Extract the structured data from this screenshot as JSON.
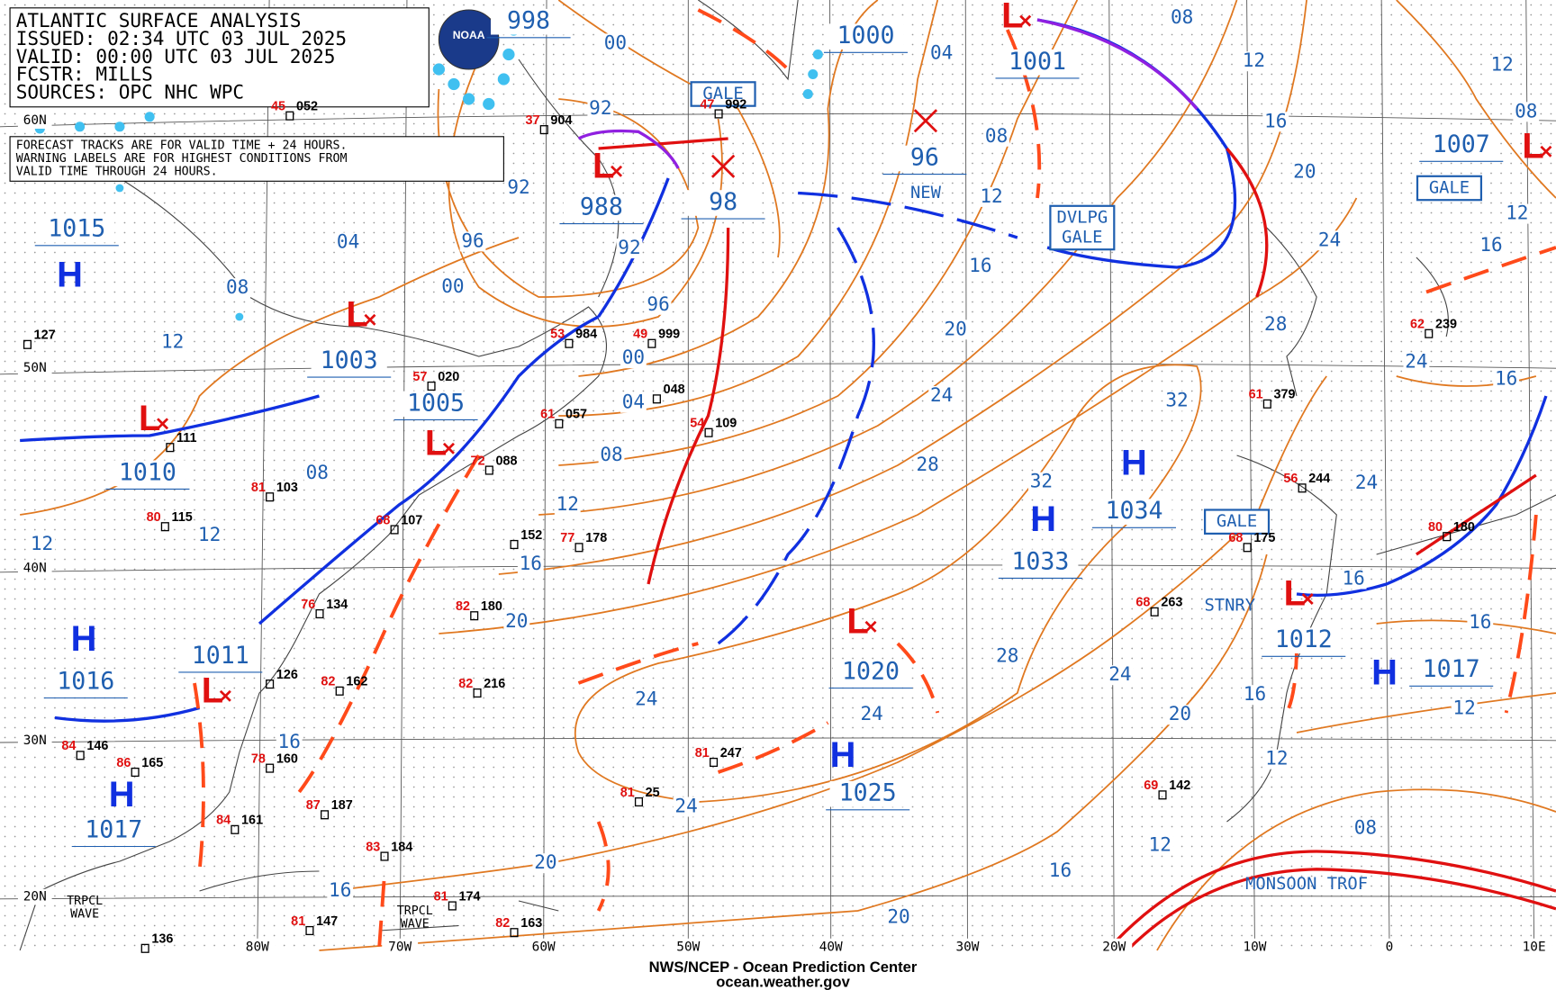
{
  "header": {
    "title": "ATLANTIC SURFACE ANALYSIS",
    "issued": "ISSUED: 02:34 UTC 03 JUL 2025",
    "valid": "VALID:  00:00 UTC 03 JUL 2025",
    "forecaster": "FCSTR:  MILLS",
    "sources": "SOURCES: OPC NHC WPC",
    "logo": "NOAA"
  },
  "notes": [
    "FORECAST TRACKS ARE FOR VALID TIME + 24 HOURS.",
    "WARNING LABELS ARE FOR HIGHEST CONDITIONS FROM",
    "VALID TIME THROUGH 24 HOURS."
  ],
  "latitudes": [
    "60N",
    "50N",
    "40N",
    "30N",
    "20N"
  ],
  "longitudes": [
    "80W",
    "70W",
    "60W",
    "50W",
    "40W",
    "30W",
    "20W",
    "10W",
    "0",
    "10E"
  ],
  "centers": [
    {
      "symbol": "H",
      "pressure": "1015"
    },
    {
      "symbol": "L",
      "pressure": "1003"
    },
    {
      "symbol": "L",
      "pressure": "1010"
    },
    {
      "symbol": "L",
      "pressure": "1005"
    },
    {
      "symbol": "L",
      "pressure": "988"
    },
    {
      "pressure": "98"
    },
    {
      "pressure": "1000"
    },
    {
      "pressure": "998"
    },
    {
      "symbol": "L",
      "pressure": "1001"
    },
    {
      "pressure": "96"
    },
    {
      "symbol": "L",
      "pressure": "1007"
    },
    {
      "symbol": "H",
      "pressure": "1034"
    },
    {
      "symbol": "H",
      "pressure": "1033"
    },
    {
      "symbol": "L",
      "pressure": "1012"
    },
    {
      "symbol": "H",
      "pressure": "1017"
    },
    {
      "symbol": "H",
      "pressure": "1016"
    },
    {
      "symbol": "L",
      "pressure": "1011"
    },
    {
      "symbol": "H",
      "pressure": "1017"
    },
    {
      "symbol": "L",
      "pressure": "1020"
    },
    {
      "symbol": "H",
      "pressure": "1025"
    }
  ],
  "isobar_labels": [
    "00",
    "04",
    "08",
    "12",
    "16",
    "20",
    "24",
    "28",
    "08",
    "12",
    "16",
    "20",
    "24",
    "28",
    "92",
    "92",
    "96",
    "00",
    "92",
    "96",
    "00",
    "04",
    "08",
    "12",
    "16",
    "20",
    "24",
    "24",
    "20",
    "16",
    "16",
    "12",
    "12",
    "12",
    "08",
    "04",
    "08",
    "32",
    "32",
    "28",
    "24",
    "24",
    "20",
    "16",
    "12",
    "12",
    "16",
    "20",
    "08",
    "12",
    "16",
    "16",
    "24",
    "24",
    "16",
    "16",
    "12",
    "12",
    "08"
  ],
  "warnings": [
    "GALE",
    "DVLPG",
    "GALE",
    "GALE",
    "GALE",
    "NEW"
  ],
  "features": [
    "STNRY",
    "MONSOON TROF",
    "TRPCL",
    "WAVE",
    "TRPCL",
    "WAVE"
  ],
  "stations": [
    {
      "pressure": "052",
      "temp": "45"
    },
    {
      "pressure": "904",
      "temp": "37"
    },
    {
      "pressure": "992",
      "temp": "47"
    },
    {
      "pressure": "984",
      "temp": "53"
    },
    {
      "pressure": "999",
      "temp": "49"
    },
    {
      "pressure": "048"
    },
    {
      "pressure": "057",
      "temp": "61"
    },
    {
      "pressure": "109",
      "temp": "54"
    },
    {
      "pressure": "088",
      "temp": "72"
    },
    {
      "pressure": "103",
      "temp": "81"
    },
    {
      "pressure": "115",
      "temp": "80"
    },
    {
      "pressure": "111"
    },
    {
      "pressure": "127"
    },
    {
      "pressure": "020",
      "temp": "57"
    },
    {
      "pressure": "107",
      "temp": "68"
    },
    {
      "pressure": "134",
      "temp": "76"
    },
    {
      "pressure": "162",
      "temp": "82"
    },
    {
      "pressure": "216",
      "temp": "82"
    },
    {
      "pressure": "180",
      "temp": "82"
    },
    {
      "pressure": "152"
    },
    {
      "pressure": "178",
      "temp": "77"
    },
    {
      "pressure": "247",
      "temp": "81"
    },
    {
      "pressure": "25",
      "temp": "81"
    },
    {
      "pressure": "160",
      "temp": "78"
    },
    {
      "pressure": "187",
      "temp": "87"
    },
    {
      "pressure": "161",
      "temp": "84"
    },
    {
      "pressure": "184",
      "temp": "83"
    },
    {
      "pressure": "174",
      "temp": "81"
    },
    {
      "pressure": "147",
      "temp": "81"
    },
    {
      "pressure": "163",
      "temp": "82"
    },
    {
      "pressure": "136"
    },
    {
      "pressure": "146",
      "temp": "84"
    },
    {
      "pressure": "165",
      "temp": "86"
    },
    {
      "pressure": "263",
      "temp": "68"
    },
    {
      "pressure": "142",
      "temp": "69"
    },
    {
      "pressure": "379",
      "temp": "61"
    },
    {
      "pressure": "244",
      "temp": "56"
    },
    {
      "pressure": "175",
      "temp": "68"
    },
    {
      "pressure": "239",
      "temp": "62"
    },
    {
      "pressure": "180",
      "temp": "80"
    },
    {
      "pressure": "126"
    }
  ],
  "footer": {
    "agency": "NWS/NCEP - Ocean Prediction Center",
    "website": "ocean.weather.gov"
  }
}
